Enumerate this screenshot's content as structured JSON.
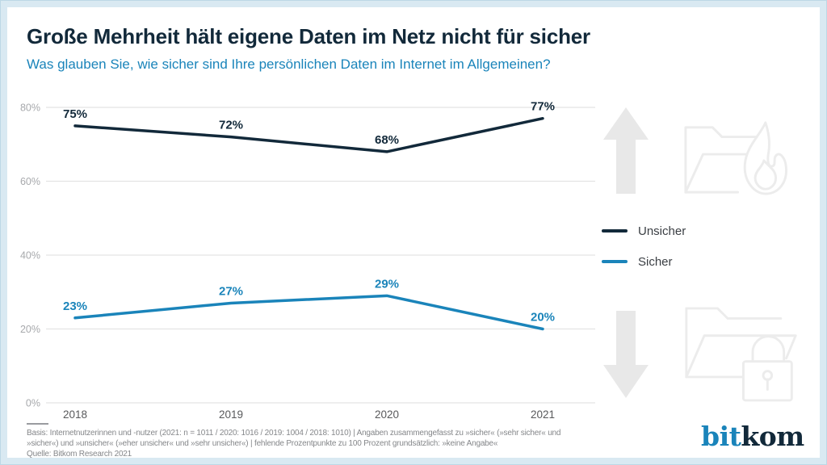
{
  "header": {
    "title": "Große Mehrheit hält eigene Daten im Netz nicht für sicher",
    "subtitle": "Was glauben Sie, wie sicher sind Ihre persönlichen Daten im Internet im Allgemeinen?"
  },
  "chart_data": {
    "type": "line",
    "categories": [
      "2018",
      "2019",
      "2020",
      "2021"
    ],
    "series": [
      {
        "name": "Unsicher",
        "values": [
          75,
          72,
          68,
          77
        ],
        "color": "#12293a"
      },
      {
        "name": "Sicher",
        "values": [
          23,
          27,
          29,
          20
        ],
        "color": "#1a84ba"
      }
    ],
    "title": "Große Mehrheit hält eigene Daten im Netz nicht für sicher",
    "xlabel": "",
    "ylabel": "",
    "ylim": [
      0,
      80
    ],
    "yticks": [
      0,
      20,
      40,
      60,
      80
    ],
    "ytick_suffix": "%",
    "value_suffix": "%",
    "grid": "horizontal",
    "legend_position": "right",
    "data_labels": true
  },
  "legend": {
    "items": [
      {
        "label": "Unsicher",
        "color": "#12293a"
      },
      {
        "label": "Sicher",
        "color": "#1a84ba"
      }
    ]
  },
  "decorations": {
    "icons": [
      "arrow-up-icon",
      "folder-fire-icon",
      "arrow-down-icon",
      "folder-lock-icon"
    ]
  },
  "footer": {
    "basis_line1": "Basis: Internetnutzerinnen und -nutzer (2021: n = 1011 / 2020: 1016 / 2019: 1004 / 2018: 1010) | Angaben zusammengefasst zu »sicher« (»sehr sicher« und",
    "basis_line2": "»sicher«) und »unsicher« (»eher unsicher« und »sehr unsicher«) | fehlende Prozentpunkte zu 100 Prozent grundsätzlich: »keine Angabe«",
    "source": "Quelle: Bitkom Research 2021"
  },
  "logo": {
    "part1": "bit",
    "part2": "kom",
    "color1": "#1a84ba",
    "color2": "#12293a"
  },
  "colors": {
    "grid": "#e4e4e4",
    "ytick_text": "#a7a9ac",
    "xtick_text": "#58595b",
    "frame": "#d9e9f2",
    "watermark_stroke": "#ececec",
    "arrow_fill": "#e8e8e8"
  }
}
